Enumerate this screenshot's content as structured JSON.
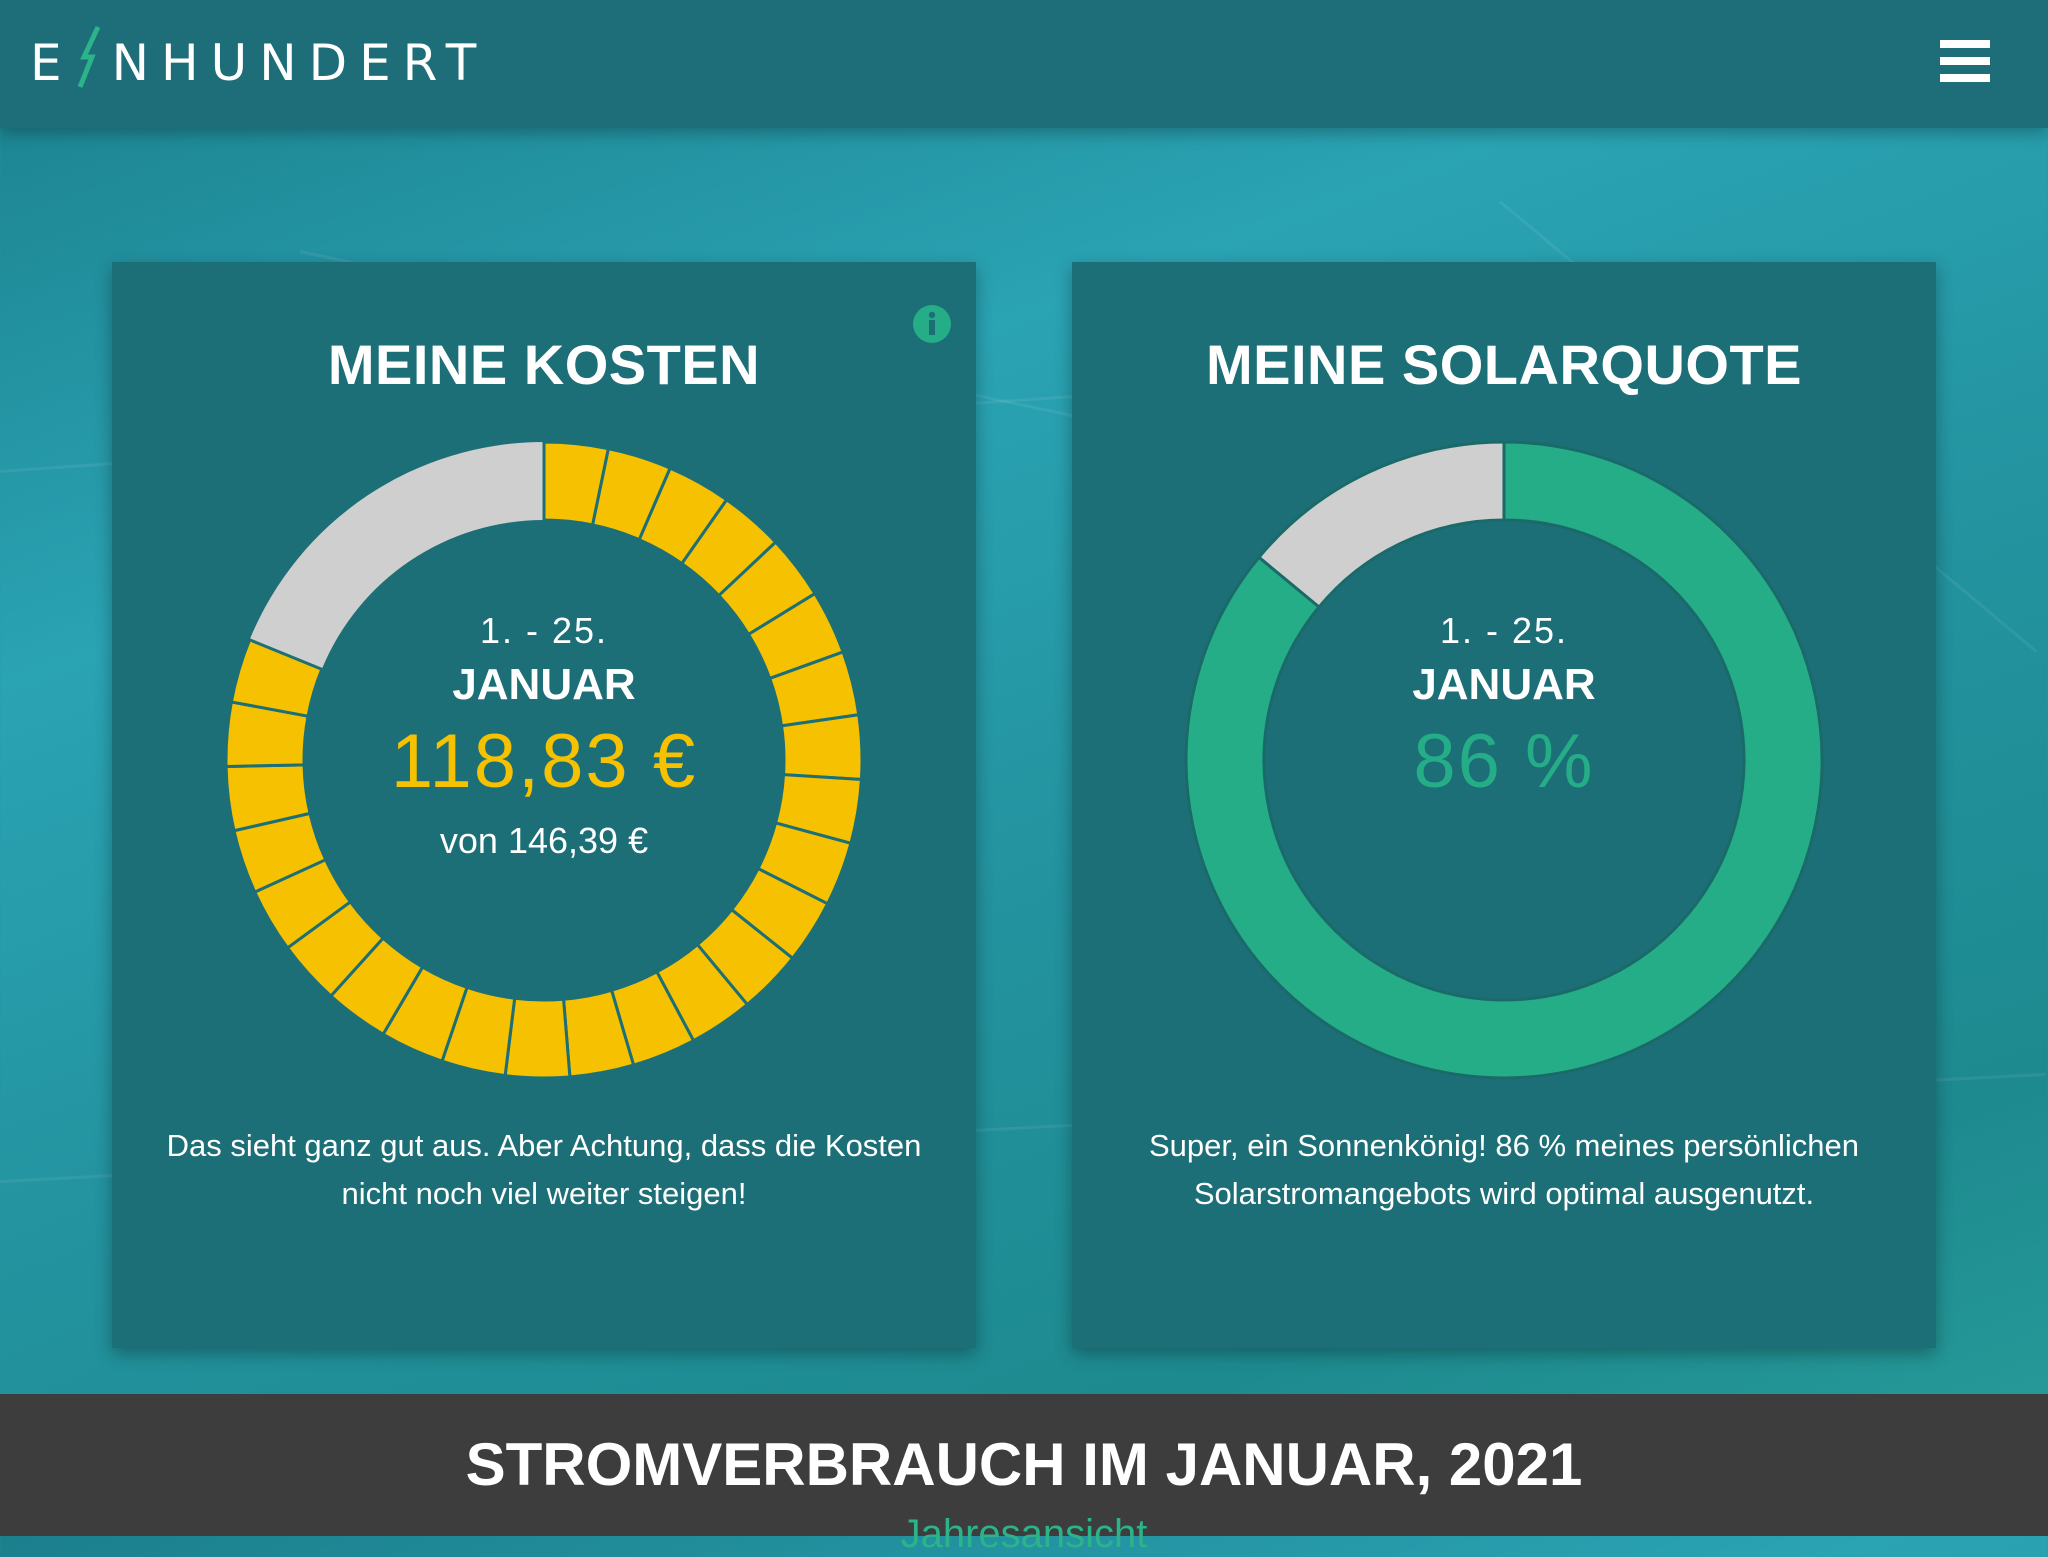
{
  "brand": {
    "logo_text_left": "E",
    "logo_text_right": "NHUNDERT"
  },
  "colors": {
    "accent_yellow": "#f5c100",
    "accent_green": "#25ad88",
    "track_gray": "#cfcfcf",
    "card_bg": "#1c6f77",
    "footer_bg": "#3d3d3d"
  },
  "icons": {
    "menu": "hamburger-menu-icon",
    "info": "info-icon",
    "logo_bolt": "lightning-bolt-icon"
  },
  "cost_card": {
    "title": "MEINE KOSTEN",
    "date_range": "1. - 25.",
    "month": "JANUAR",
    "amount": "118,83 €",
    "budget": "von 146,39 €",
    "fraction": 0.8117,
    "segments": 25,
    "message": "Das sieht ganz gut aus. Aber Achtung, dass die Kosten nicht noch viel weiter steigen!"
  },
  "solar_card": {
    "title": "MEINE SOLARQUOTE",
    "date_range": "1. - 25.",
    "month": "JANUAR",
    "value": "86 %",
    "fraction": 0.86,
    "message": "Super, ein Sonnenkönig! 86 % meines persönlichen Solarstromangebots wird optimal ausgenutzt."
  },
  "footer": {
    "title": "STROMVERBRAUCH IM JANUAR, 2021",
    "link": "Jahresansicht"
  }
}
